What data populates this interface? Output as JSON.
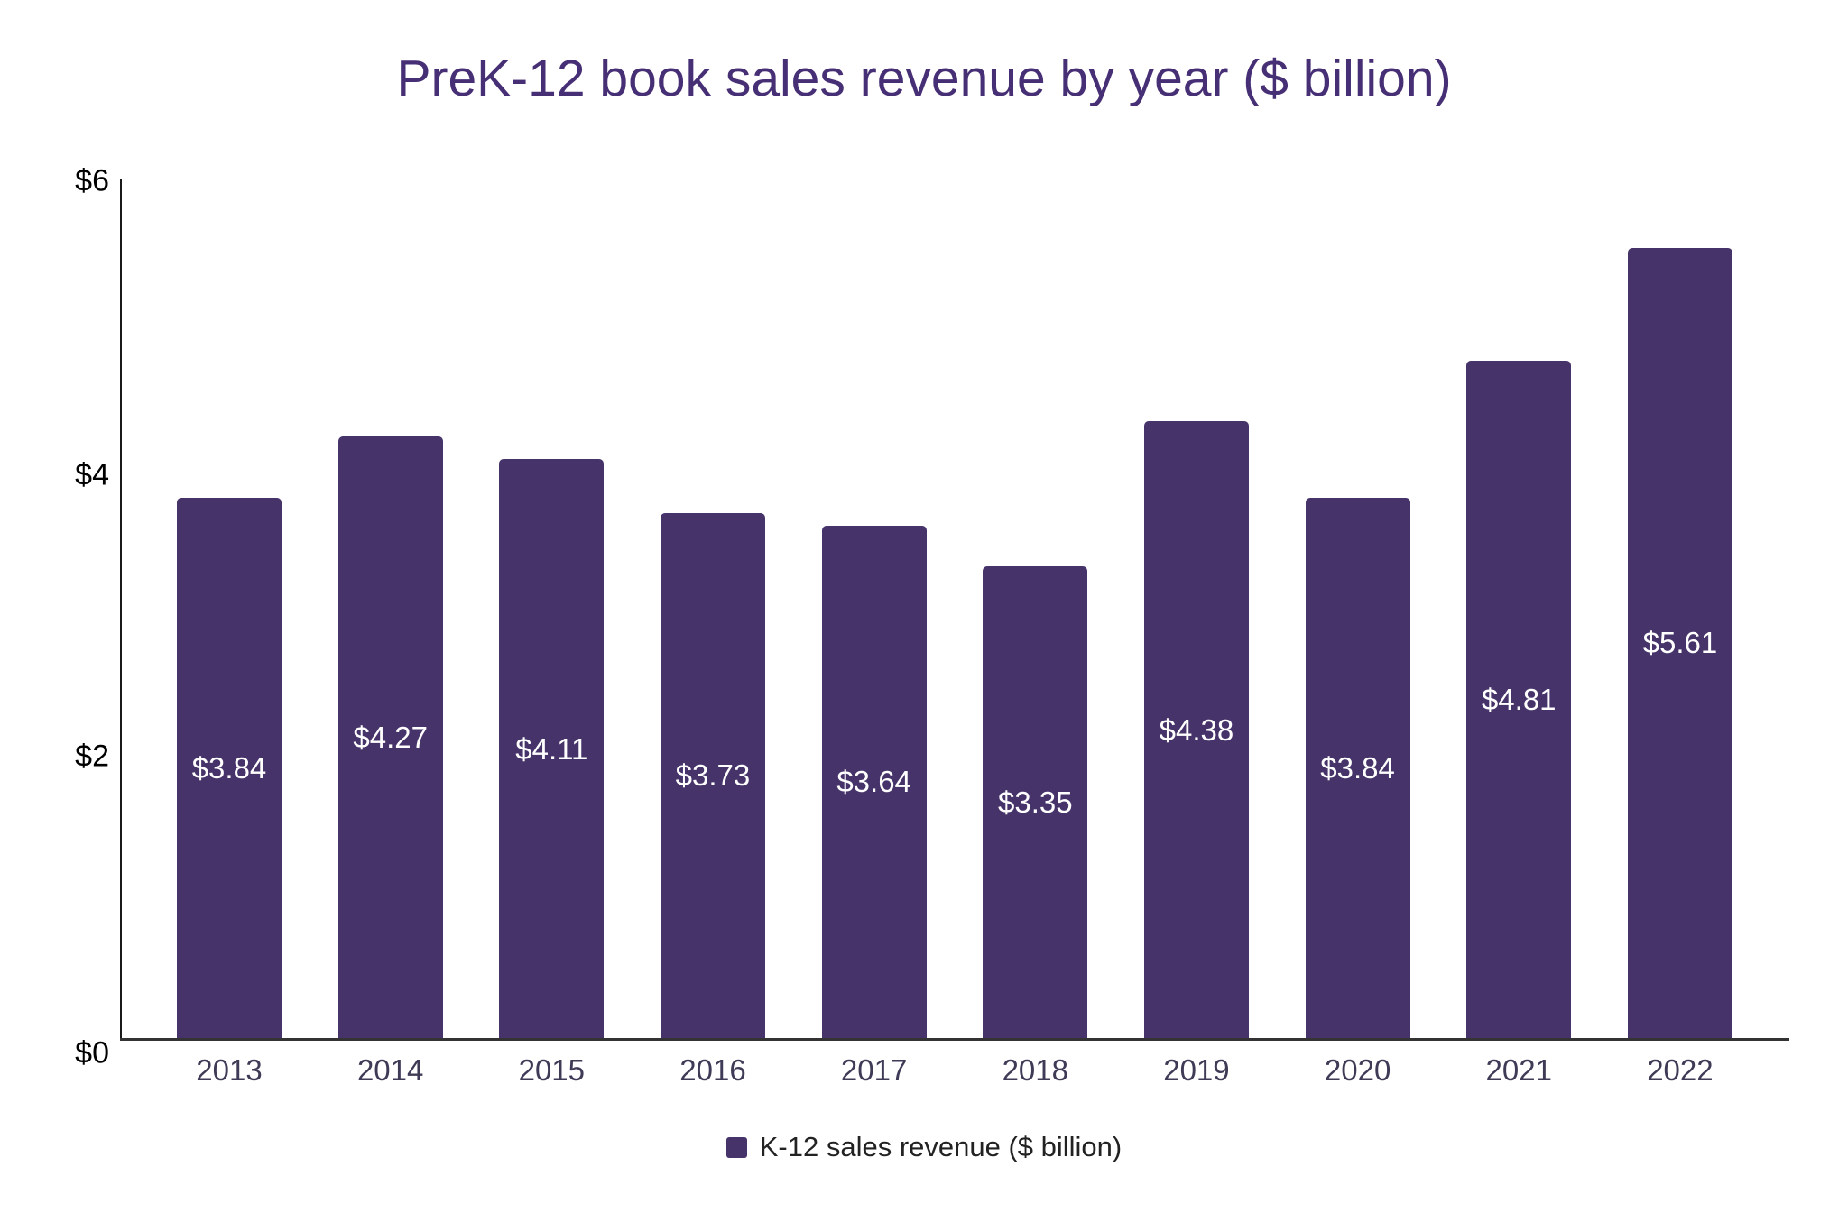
{
  "chart_data": {
    "type": "bar",
    "title": "PreK-12 book sales revenue by year ($ billion)",
    "categories": [
      "2013",
      "2014",
      "2015",
      "2016",
      "2017",
      "2018",
      "2019",
      "2020",
      "2021",
      "2022"
    ],
    "values": [
      3.84,
      4.27,
      4.11,
      3.73,
      3.64,
      3.35,
      4.38,
      3.84,
      4.81,
      5.61
    ],
    "bar_labels": [
      "$3.84",
      "$4.27",
      "$4.11",
      "$3.73",
      "$3.64",
      "$3.35",
      "$4.38",
      "$3.84",
      "$4.81",
      "$5.61"
    ],
    "xlabel": "",
    "ylabel": "",
    "ylim": [
      0,
      6
    ],
    "y_ticks": [
      {
        "value": 0,
        "label": "$0"
      },
      {
        "value": 2,
        "label": "$2"
      },
      {
        "value": 4,
        "label": "$4"
      },
      {
        "value": 6,
        "label": "$6"
      }
    ],
    "grid": false,
    "legend_position": "bottom-center",
    "legend": {
      "items": [
        {
          "label": "K-12 sales revenue ($ billion)",
          "swatch_color": "#463369"
        }
      ]
    },
    "colors": {
      "bar": "#463369",
      "title": "#462f75",
      "axis_line": "#1a1a1a",
      "baseline": "#333333",
      "tick_label": "#000000",
      "category_label": "#3f3a56",
      "value_label": "#ffffff",
      "legend_text": "#222222"
    }
  }
}
